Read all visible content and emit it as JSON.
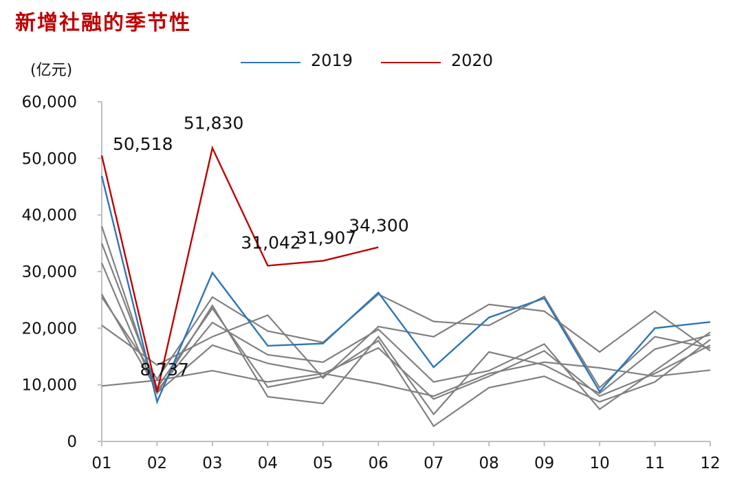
{
  "chart_data": {
    "type": "line",
    "title": "新增社融的季节性",
    "unit_label": "(亿元)",
    "categories": [
      "01",
      "02",
      "03",
      "04",
      "05",
      "06",
      "07",
      "08",
      "09",
      "10",
      "11",
      "12"
    ],
    "ylim": [
      0,
      60000
    ],
    "yticks": [
      0,
      10000,
      20000,
      30000,
      40000,
      50000,
      60000
    ],
    "ytick_labels": [
      "0",
      "10,000",
      "20,000",
      "30,000",
      "40,000",
      "50,000",
      "60,000"
    ],
    "legend": [
      "2019",
      "2020"
    ],
    "colors": {
      "history": "#808080",
      "2019": "#2e75b6",
      "2020": "#c00000",
      "axis": "#bfbfbf"
    },
    "history_series": [
      {
        "name": "history-1",
        "values": [
          9800,
          10800,
          12500,
          10500,
          12000,
          10200,
          8000,
          12000,
          14000,
          13000,
          11500,
          12600
        ]
      },
      {
        "name": "history-2",
        "values": [
          20500,
          13500,
          18500,
          22300,
          11200,
          20300,
          18500,
          24200,
          23000,
          15800,
          23000,
          16000
        ]
      },
      {
        "name": "history-3",
        "values": [
          25500,
          11000,
          25500,
          19500,
          17500,
          26000,
          21200,
          20500,
          25600,
          9500,
          18500,
          16500
        ]
      },
      {
        "name": "history-4",
        "values": [
          26000,
          9000,
          21000,
          15300,
          14000,
          19800,
          10500,
          12500,
          17200,
          5700,
          12500,
          19300
        ]
      },
      {
        "name": "history-5",
        "values": [
          31500,
          8500,
          24000,
          7900,
          6700,
          18500,
          4800,
          15800,
          13500,
          8500,
          16300,
          18800
        ]
      },
      {
        "name": "history-6",
        "values": [
          35000,
          9500,
          23500,
          9600,
          11500,
          17800,
          2700,
          9500,
          11500,
          7000,
          10500,
          18000
        ]
      },
      {
        "name": "history-7",
        "values": [
          38000,
          8600,
          17000,
          13800,
          12000,
          16500,
          7500,
          11500,
          16000,
          8000,
          12000,
          17000
        ]
      }
    ],
    "series": [
      {
        "name": "2019",
        "values": [
          46900,
          7000,
          29800,
          16900,
          17300,
          26300,
          13100,
          21900,
          25300,
          8800,
          20000,
          21100
        ]
      },
      {
        "name": "2020",
        "values": [
          50518,
          8737,
          51830,
          31042,
          31907,
          34300,
          null,
          null,
          null,
          null,
          null,
          null
        ]
      }
    ],
    "annotations": [
      {
        "text": "50,518",
        "category": "01",
        "value": 50518
      },
      {
        "text": "8,737",
        "category": "02",
        "value": 8737
      },
      {
        "text": "51,830",
        "category": "03",
        "value": 51830
      },
      {
        "text": "31,042",
        "category": "04",
        "value": 31042
      },
      {
        "text": "31,907",
        "category": "05",
        "value": 31907
      },
      {
        "text": "34,300",
        "category": "06",
        "value": 34300
      }
    ]
  }
}
